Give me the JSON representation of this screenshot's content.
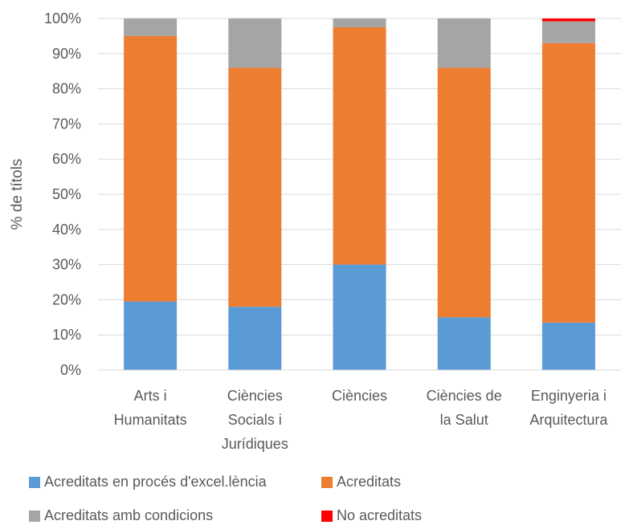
{
  "chart_data": {
    "type": "bar",
    "stacked": true,
    "normalized": true,
    "categories": [
      [
        "Arts i",
        "Humanitats"
      ],
      [
        "Ciències",
        "Socials i",
        "Jurídiques"
      ],
      [
        "Ciències"
      ],
      [
        "Ciències de",
        "la Salut"
      ],
      [
        "Enginyeria i",
        "Arquitectura"
      ]
    ],
    "series": [
      {
        "name": "Acreditats en procés d'excel.lència",
        "color": "#5B9BD5",
        "values": [
          19.5,
          18,
          30,
          15,
          13.5
        ]
      },
      {
        "name": "Acreditats",
        "color": "#ED7D31",
        "values": [
          75.5,
          68,
          67.5,
          71,
          79.5
        ]
      },
      {
        "name": "Acreditats amb condicions",
        "color": "#A5A5A5",
        "values": [
          5,
          14,
          2.5,
          14,
          6.2
        ]
      },
      {
        "name": "No acreditats",
        "color": "#FF0000",
        "values": [
          0,
          0,
          0,
          0,
          0.8
        ]
      }
    ],
    "ylabel": "% de títols",
    "xlabel": "",
    "title": "",
    "ylim": [
      0,
      100
    ],
    "yticks": [
      "0%",
      "10%",
      "20%",
      "30%",
      "40%",
      "50%",
      "60%",
      "70%",
      "80%",
      "90%",
      "100%"
    ],
    "grid": true,
    "legend_position": "bottom"
  }
}
